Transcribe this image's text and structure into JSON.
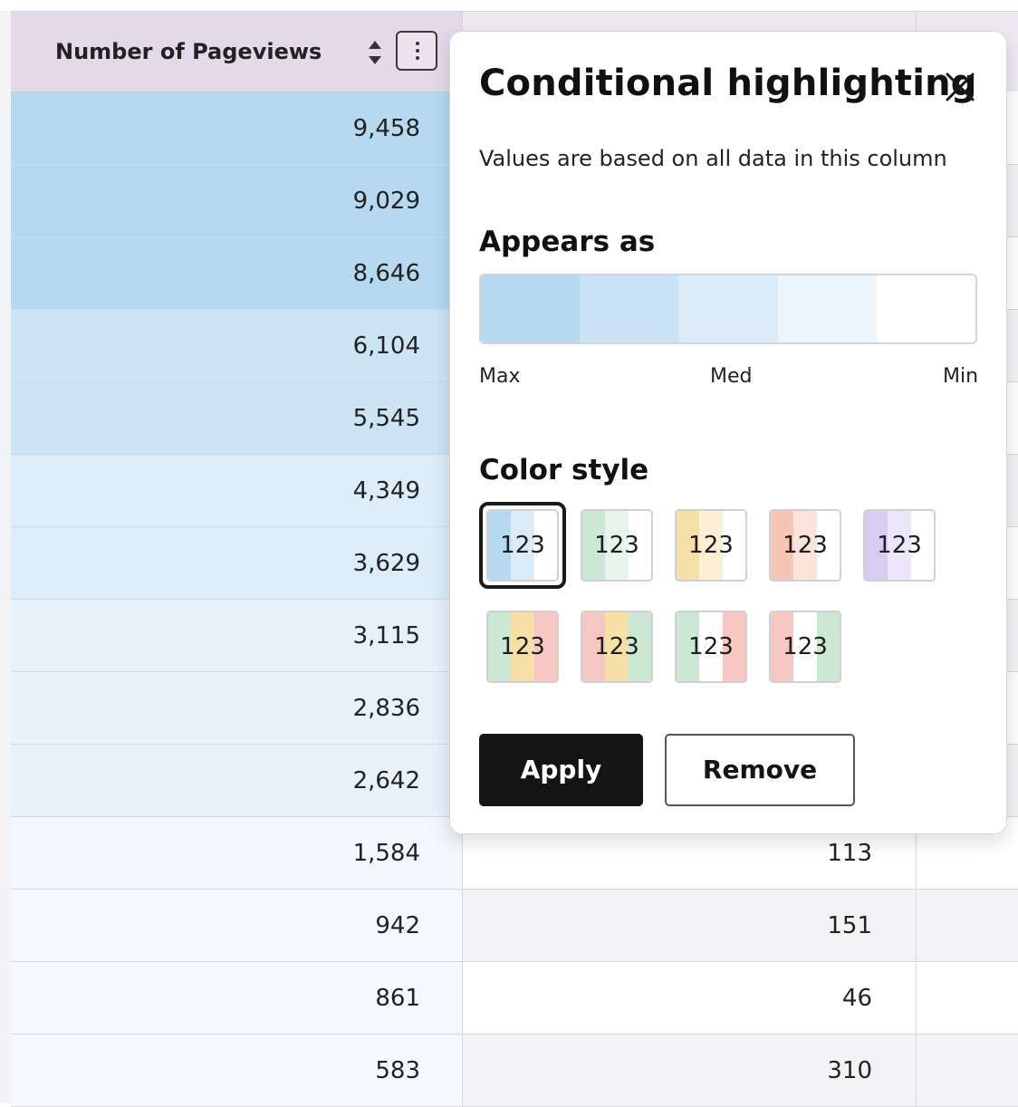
{
  "table": {
    "column_header": "Number of Pageviews",
    "rows": [
      {
        "pageviews": "9,458",
        "second": "",
        "shade": "#b7d9ef"
      },
      {
        "pageviews": "9,029",
        "second": "",
        "shade": "#b7d9ef"
      },
      {
        "pageviews": "8,646",
        "second": "",
        "shade": "#b7d9ef"
      },
      {
        "pageviews": "6,104",
        "second": "",
        "shade": "#cde4f4"
      },
      {
        "pageviews": "5,545",
        "second": "",
        "shade": "#cde4f4"
      },
      {
        "pageviews": "4,349",
        "second": "",
        "shade": "#dcecf8"
      },
      {
        "pageviews": "3,629",
        "second": "",
        "shade": "#dcecf8"
      },
      {
        "pageviews": "3,115",
        "second": "",
        "shade": "#e6f1fa"
      },
      {
        "pageviews": "2,836",
        "second": "",
        "shade": "#e6f1fa"
      },
      {
        "pageviews": "2,642",
        "second": "",
        "shade": "#e6f1fa"
      },
      {
        "pageviews": "1,584",
        "second": "113",
        "shade": "#f1f7fc"
      },
      {
        "pageviews": "942",
        "second": "151",
        "shade": "#f5f9fd"
      },
      {
        "pageviews": "861",
        "second": "46",
        "shade": "#f5f9fd"
      },
      {
        "pageviews": "583",
        "second": "310",
        "shade": "#f5f9fd"
      }
    ]
  },
  "popover": {
    "title": "Conditional highlighting",
    "subtitle": "Values are based on all data in this column",
    "appears_as": {
      "heading": "Appears as",
      "scale_colors": [
        "#b7d9ef",
        "#c9e2f5",
        "#dbebf8",
        "#edf5fc",
        "#ffffff"
      ],
      "labels": {
        "max": "Max",
        "med": "Med",
        "min": "Min"
      }
    },
    "color_style": {
      "heading": "Color style",
      "selected_index": 0,
      "swatch_label": "123",
      "swatches": [
        {
          "colors": [
            "#b7d9ef",
            "#dbebf8",
            "#ffffff"
          ]
        },
        {
          "colors": [
            "#cbe8d5",
            "#e6f4eb",
            "#ffffff"
          ]
        },
        {
          "colors": [
            "#f7e0a8",
            "#fbf0d5",
            "#ffffff"
          ]
        },
        {
          "colors": [
            "#f6c6b4",
            "#fae3da",
            "#ffffff"
          ]
        },
        {
          "colors": [
            "#d8ccf3",
            "#ece6fa",
            "#ffffff"
          ]
        },
        {
          "colors": [
            "#cbe8d5",
            "#f7e0a8",
            "#f6c6c2"
          ]
        },
        {
          "colors": [
            "#f6c6c2",
            "#f7e0a8",
            "#cbe8d5"
          ]
        },
        {
          "colors": [
            "#cbe8d5",
            "#ffffff",
            "#f6c6c2"
          ]
        },
        {
          "colors": [
            "#f6c6c2",
            "#ffffff",
            "#cbe8d5"
          ]
        }
      ]
    },
    "buttons": {
      "apply": "Apply",
      "remove": "Remove"
    }
  }
}
